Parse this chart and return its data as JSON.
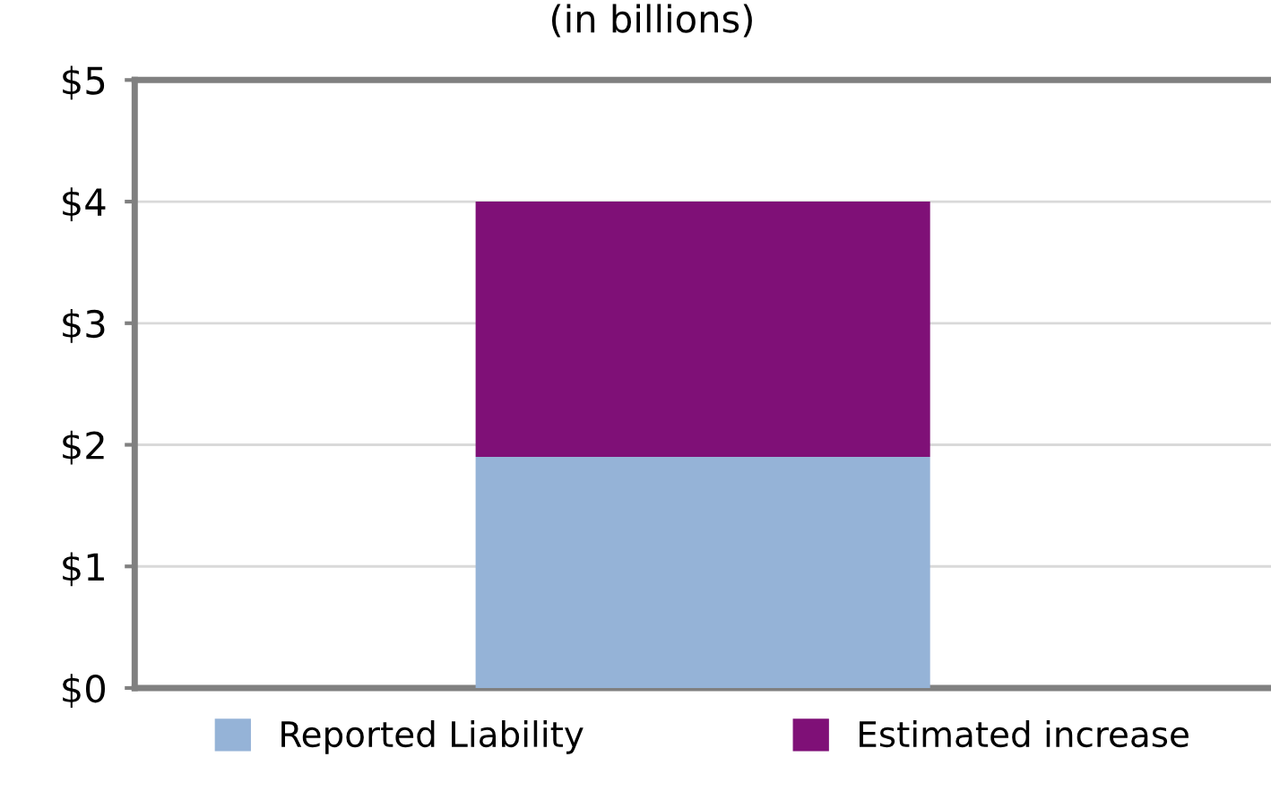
{
  "chart_data": {
    "type": "bar",
    "title": "(in billions)",
    "stacked": true,
    "categories": [
      null
    ],
    "series": [
      {
        "name": "Reported Liability",
        "color": "#95b3d7",
        "values": [
          1.9
        ]
      },
      {
        "name": "Estimated increase",
        "color": "#7f1077",
        "values": [
          2.1
        ]
      }
    ],
    "ylim": [
      0,
      5
    ],
    "yticks": [
      {
        "value": 0,
        "label": "$0"
      },
      {
        "value": 1,
        "label": "$1"
      },
      {
        "value": 2,
        "label": "$2"
      },
      {
        "value": 3,
        "label": "$3"
      },
      {
        "value": 4,
        "label": "$4"
      },
      {
        "value": 5,
        "label": "$5"
      }
    ],
    "grid": "y",
    "legend": "bottom"
  }
}
